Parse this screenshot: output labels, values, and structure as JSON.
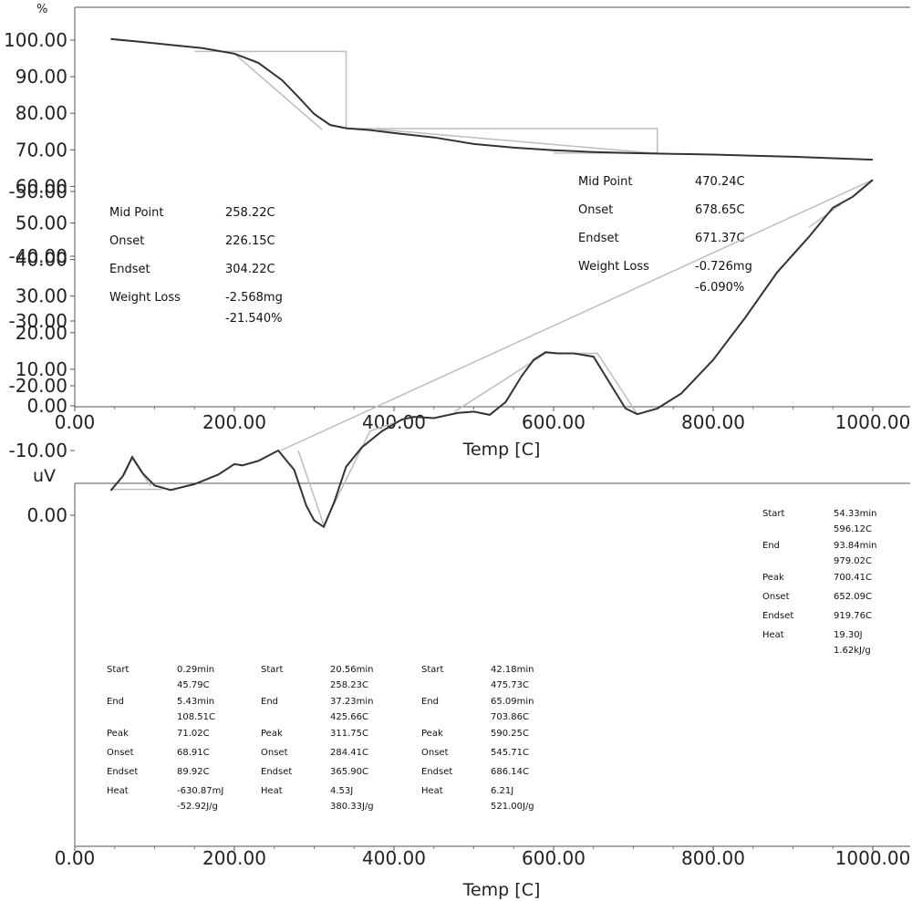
{
  "chart_data": [
    {
      "type": "line",
      "ylabel_unit": "%",
      "xlabel": "Temp [C]",
      "xlim": [
        0,
        1000
      ],
      "ylim": [
        0,
        100
      ],
      "x_ticks": [
        "0.00",
        "200.00",
        "400.00",
        "600.00",
        "800.00",
        "1000.00"
      ],
      "y_ticks": [
        "100.00",
        "90.00",
        "80.00",
        "70.00",
        "60.00",
        "50.00",
        "40.00",
        "30.00",
        "20.00",
        "10.00",
        "0.00"
      ],
      "series": [
        {
          "x": [
            45,
            80,
            120,
            160,
            200,
            230,
            260,
            280,
            300,
            320,
            340,
            370,
            400,
            450,
            500,
            550,
            600,
            650,
            700,
            750,
            800,
            850,
            900,
            950,
            1000
          ],
          "y": [
            100.3,
            99.6,
            98.7,
            97.8,
            96.3,
            93.8,
            89.0,
            84.5,
            79.8,
            76.8,
            75.9,
            75.4,
            74.6,
            73.4,
            71.6,
            70.6,
            69.9,
            69.4,
            69.1,
            68.9,
            68.7,
            68.4,
            68.1,
            67.7,
            67.3
          ]
        }
      ],
      "annotations": [
        {
          "rows": [
            {
              "label": "Mid Point",
              "value": "258.22C"
            },
            {
              "label": "Onset",
              "value": "226.15C"
            },
            {
              "label": "Endset",
              "value": "304.22C"
            },
            {
              "label": "Weight Loss",
              "value": "-2.568mg"
            },
            {
              "label": "",
              "value": "-21.540%"
            }
          ]
        },
        {
          "rows": [
            {
              "label": "Mid Point",
              "value": "470.24C"
            },
            {
              "label": "Onset",
              "value": "678.65C"
            },
            {
              "label": "Endset",
              "value": "671.37C"
            },
            {
              "label": "Weight Loss",
              "value": "-0.726mg"
            },
            {
              "label": "",
              "value": "-6.090%"
            }
          ]
        }
      ]
    },
    {
      "type": "line",
      "ylabel": "uV",
      "xlabel": "Temp [C]",
      "xlim": [
        0,
        1000
      ],
      "ylim": [
        -55,
        5
      ],
      "x_ticks": [
        "0.00",
        "200.00",
        "400.00",
        "600.00",
        "800.00",
        "1000.00"
      ],
      "y_ticks": [
        "0.00",
        "-10.00",
        "-20.00",
        "-30.00",
        "-40.00",
        "-50.00"
      ],
      "series": [
        {
          "x": [
            45,
            60,
            72,
            85,
            100,
            120,
            150,
            180,
            200,
            210,
            230,
            255,
            275,
            290,
            300,
            312,
            325,
            340,
            360,
            385,
            410,
            425,
            450,
            480,
            500,
            520,
            540,
            560,
            575,
            590,
            605,
            625,
            650,
            670,
            690,
            705,
            730,
            760,
            800,
            840,
            880,
            920,
            950,
            975,
            1000
          ],
          "y": [
            -3.8,
            -6.0,
            -9.0,
            -6.5,
            -4.6,
            -3.9,
            -4.8,
            -6.3,
            -7.9,
            -7.7,
            -8.4,
            -10.0,
            -7.0,
            -1.5,
            0.8,
            1.8,
            -2.0,
            -7.5,
            -10.5,
            -13.0,
            -14.8,
            -15.2,
            -15.0,
            -15.8,
            -16.0,
            -15.5,
            -17.5,
            -21.5,
            -24.0,
            -25.2,
            -25.0,
            -25.0,
            -24.5,
            -20.5,
            -16.5,
            -15.6,
            -16.5,
            -18.8,
            -24.0,
            -30.5,
            -37.5,
            -43.0,
            -47.5,
            -49.2,
            -51.8
          ]
        }
      ],
      "annotations": [
        {
          "rows": [
            {
              "label": "Start",
              "value": [
                "0.29min",
                "45.79C"
              ]
            },
            {
              "label": "End",
              "value": [
                "5.43min",
                "108.51C"
              ]
            },
            {
              "label": "Peak",
              "value": [
                "71.02C"
              ]
            },
            {
              "label": "Onset",
              "value": [
                "68.91C"
              ]
            },
            {
              "label": "Endset",
              "value": [
                "89.92C"
              ]
            },
            {
              "label": "Heat",
              "value": [
                "-630.87mJ",
                "-52.92J/g"
              ]
            }
          ]
        },
        {
          "rows": [
            {
              "label": "Start",
              "value": [
                "20.56min",
                "258.23C"
              ]
            },
            {
              "label": "End",
              "value": [
                "37.23min",
                "425.66C"
              ]
            },
            {
              "label": "Peak",
              "value": [
                "311.75C"
              ]
            },
            {
              "label": "Onset",
              "value": [
                "284.41C"
              ]
            },
            {
              "label": "Endset",
              "value": [
                "365.90C"
              ]
            },
            {
              "label": "Heat",
              "value": [
                "4.53J",
                "380.33J/g"
              ]
            }
          ]
        },
        {
          "rows": [
            {
              "label": "Start",
              "value": [
                "42.18min",
                "475.73C"
              ]
            },
            {
              "label": "End",
              "value": [
                "65.09min",
                "703.86C"
              ]
            },
            {
              "label": "Peak",
              "value": [
                "590.25C"
              ]
            },
            {
              "label": "Onset",
              "value": [
                "545.71C"
              ]
            },
            {
              "label": "Endset",
              "value": [
                "686.14C"
              ]
            },
            {
              "label": "Heat",
              "value": [
                "6.21J",
                "521.00J/g"
              ]
            }
          ]
        },
        {
          "rows": [
            {
              "label": "Start",
              "value": [
                "54.33min",
                "596.12C"
              ]
            },
            {
              "label": "End",
              "value": [
                "93.84min",
                "979.02C"
              ]
            },
            {
              "label": "Peak",
              "value": [
                "700.41C"
              ]
            },
            {
              "label": "Onset",
              "value": [
                "652.09C"
              ]
            },
            {
              "label": "Endset",
              "value": [
                "919.76C"
              ]
            },
            {
              "label": "Heat",
              "value": [
                "19.30J",
                "1.62kJ/g"
              ]
            }
          ]
        }
      ]
    }
  ]
}
